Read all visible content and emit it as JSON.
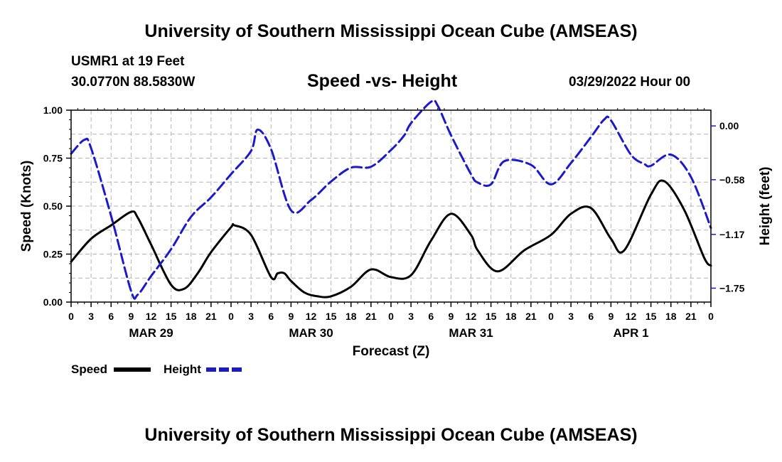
{
  "header": {
    "title": "University of Southern Mississippi Ocean Cube (AMSEAS)",
    "station": "USMR1 at 19 Feet",
    "coords": "30.0770N  88.5830W",
    "subtitle": "Speed -vs- Height",
    "datetime": "03/29/2022 Hour 00"
  },
  "footer": {
    "title": "University of Southern Mississippi Ocean Cube (AMSEAS)"
  },
  "colors": {
    "speed": "#000000",
    "height": "#1a1acc",
    "grid": "#b4b4b4"
  },
  "chart_data": {
    "type": "line",
    "title": "Speed -vs- Height",
    "xlabel": "Forecast (Z)",
    "ylabel_left": "Speed (Knots)",
    "ylabel_right": "Height (feet)",
    "xlim": [
      0,
      96
    ],
    "ylim_left": [
      0,
      1.0
    ],
    "ylim_right": [
      -1.9,
      0.17
    ],
    "grid": true,
    "legend_position": "bottom-left",
    "x_ticks": [
      0,
      3,
      6,
      9,
      12,
      15,
      18,
      21,
      24,
      27,
      30,
      33,
      36,
      39,
      42,
      45,
      48,
      51,
      54,
      57,
      60,
      63,
      66,
      69,
      72,
      75,
      78,
      81,
      84,
      87,
      90,
      93,
      96
    ],
    "x_tick_labels": [
      "0",
      "3",
      "6",
      "9",
      "12",
      "15",
      "18",
      "21",
      "0",
      "3",
      "6",
      "9",
      "12",
      "15",
      "18",
      "21",
      "0",
      "3",
      "6",
      "9",
      "12",
      "15",
      "18",
      "21",
      "0",
      "3",
      "6",
      "9",
      "12",
      "15",
      "18",
      "21",
      "0"
    ],
    "day_labels": [
      {
        "x": 12,
        "label": "MAR 29"
      },
      {
        "x": 36,
        "label": "MAR 30"
      },
      {
        "x": 60,
        "label": "MAR 31"
      },
      {
        "x": 84,
        "label": "APR 1"
      }
    ],
    "y_left_ticks": [
      0.0,
      0.25,
      0.5,
      0.75,
      1.0
    ],
    "y_left_tick_labels": [
      "0.00",
      "0.25",
      "0.50",
      "0.75",
      "1.00"
    ],
    "y_right_ticks": [
      0.0,
      -0.58,
      -1.17,
      -1.75
    ],
    "y_right_tick_labels": [
      "0.00",
      "−0.58",
      "−1.17",
      "−1.75"
    ],
    "series": [
      {
        "name": "Speed",
        "axis": "left",
        "style": "solid",
        "x": [
          0,
          3,
          6,
          9,
          10,
          12,
          15,
          17,
          19,
          21,
          24,
          24.5,
          27,
          30,
          31,
          32,
          33,
          35,
          37,
          39,
          42,
          45,
          48,
          51,
          54,
          57,
          60,
          61,
          64,
          68,
          72,
          75,
          78,
          81,
          83,
          87,
          89,
          92,
          95,
          96
        ],
        "values": [
          0.21,
          0.33,
          0.4,
          0.47,
          0.44,
          0.3,
          0.09,
          0.07,
          0.15,
          0.26,
          0.39,
          0.4,
          0.35,
          0.13,
          0.15,
          0.15,
          0.11,
          0.05,
          0.03,
          0.03,
          0.08,
          0.17,
          0.13,
          0.14,
          0.32,
          0.46,
          0.35,
          0.27,
          0.16,
          0.27,
          0.35,
          0.46,
          0.49,
          0.33,
          0.27,
          0.56,
          0.63,
          0.48,
          0.23,
          0.19
        ]
      },
      {
        "name": "Height",
        "axis": "right",
        "style": "dashed",
        "x": [
          0,
          2,
          3,
          6,
          9,
          10,
          12,
          15,
          18,
          21,
          24,
          27,
          28,
          30,
          33,
          36,
          39,
          42,
          45,
          48,
          50,
          51,
          54,
          55,
          57,
          60,
          61,
          63,
          65,
          69,
          72,
          75,
          78,
          80,
          81,
          84,
          86,
          87,
          90,
          93,
          96
        ],
        "values": [
          -0.3,
          -0.15,
          -0.24,
          -0.97,
          -1.78,
          -1.82,
          -1.62,
          -1.33,
          -0.98,
          -0.77,
          -0.52,
          -0.27,
          -0.04,
          -0.25,
          -0.91,
          -0.8,
          -0.6,
          -0.45,
          -0.44,
          -0.26,
          -0.1,
          0.03,
          0.26,
          0.22,
          -0.1,
          -0.52,
          -0.61,
          -0.63,
          -0.38,
          -0.42,
          -0.63,
          -0.4,
          -0.12,
          0.07,
          0.06,
          -0.31,
          -0.41,
          -0.43,
          -0.31,
          -0.55,
          -1.1
        ]
      }
    ],
    "legend": [
      "Speed",
      "Height"
    ]
  }
}
